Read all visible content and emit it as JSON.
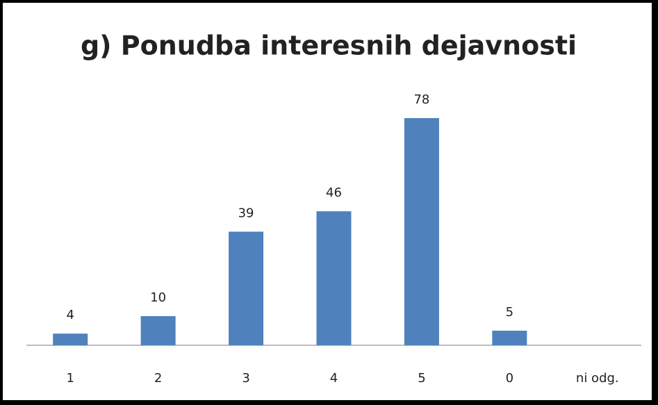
{
  "chart_data": {
    "type": "bar",
    "title": "g) Ponudba interesnih dejavnosti",
    "categories": [
      "1",
      "2",
      "3",
      "4",
      "5",
      "0",
      "ni odg."
    ],
    "values": [
      4,
      10,
      39,
      46,
      78,
      5,
      null
    ],
    "color": "#4f81bd",
    "grid": false
  }
}
